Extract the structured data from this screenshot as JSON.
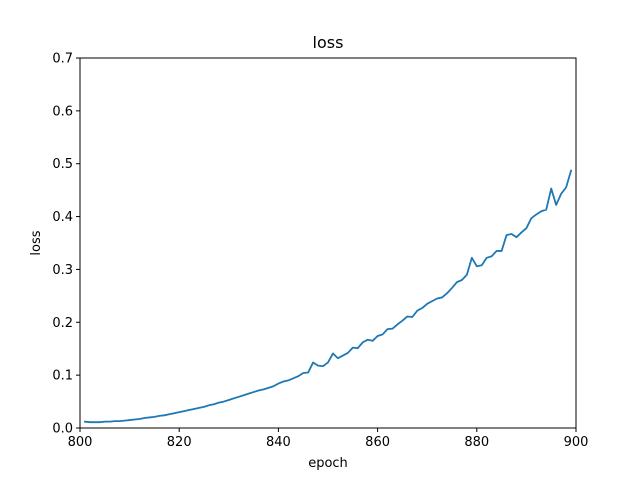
{
  "chart_data": {
    "type": "line",
    "title": "loss",
    "xlabel": "epoch",
    "ylabel": "loss",
    "xlim": [
      800,
      900
    ],
    "ylim": [
      0,
      0.7
    ],
    "xticks": [
      "800",
      "820",
      "840",
      "860",
      "880",
      "900"
    ],
    "yticks": [
      "0.0",
      "0.1",
      "0.2",
      "0.3",
      "0.4",
      "0.5",
      "0.6",
      "0.7"
    ],
    "grid": false,
    "legend": "none",
    "series": [
      {
        "color": "#1f77b4",
        "x": [
          801,
          802,
          803,
          804,
          805,
          806,
          807,
          808,
          809,
          810,
          811,
          812,
          813,
          814,
          815,
          816,
          817,
          818,
          819,
          820,
          821,
          822,
          823,
          824,
          825,
          826,
          827,
          828,
          829,
          830,
          831,
          832,
          833,
          834,
          835,
          836,
          837,
          838,
          839,
          840,
          841,
          842,
          843,
          844,
          845,
          846,
          847,
          848,
          849,
          850,
          851,
          852,
          853,
          854,
          855,
          856,
          857,
          858,
          859,
          860,
          861,
          862,
          863,
          864,
          865,
          866,
          867,
          868,
          869,
          870,
          871,
          872,
          873,
          874,
          875,
          876,
          877,
          878,
          879,
          880,
          881,
          882,
          883,
          884,
          885,
          886,
          887,
          888,
          889,
          890,
          891,
          892,
          893,
          894,
          895,
          896,
          897,
          898,
          899
        ],
        "values": [
          0.012,
          0.011,
          0.011,
          0.011,
          0.012,
          0.012,
          0.013,
          0.013,
          0.014,
          0.015,
          0.016,
          0.017,
          0.019,
          0.02,
          0.021,
          0.023,
          0.024,
          0.026,
          0.028,
          0.03,
          0.032,
          0.034,
          0.036,
          0.038,
          0.04,
          0.043,
          0.045,
          0.048,
          0.05,
          0.053,
          0.056,
          0.059,
          0.062,
          0.065,
          0.068,
          0.071,
          0.073,
          0.076,
          0.079,
          0.084,
          0.088,
          0.09,
          0.094,
          0.098,
          0.104,
          0.105,
          0.124,
          0.118,
          0.117,
          0.124,
          0.141,
          0.132,
          0.137,
          0.142,
          0.152,
          0.151,
          0.162,
          0.167,
          0.165,
          0.174,
          0.177,
          0.187,
          0.188,
          0.196,
          0.203,
          0.211,
          0.21,
          0.222,
          0.227,
          0.235,
          0.24,
          0.245,
          0.247,
          0.255,
          0.265,
          0.276,
          0.28,
          0.29,
          0.322,
          0.306,
          0.308,
          0.322,
          0.325,
          0.335,
          0.335,
          0.365,
          0.367,
          0.361,
          0.37,
          0.378,
          0.397,
          0.404,
          0.41,
          0.413,
          0.453,
          0.422,
          0.443,
          0.455,
          0.487
        ]
      }
    ]
  }
}
